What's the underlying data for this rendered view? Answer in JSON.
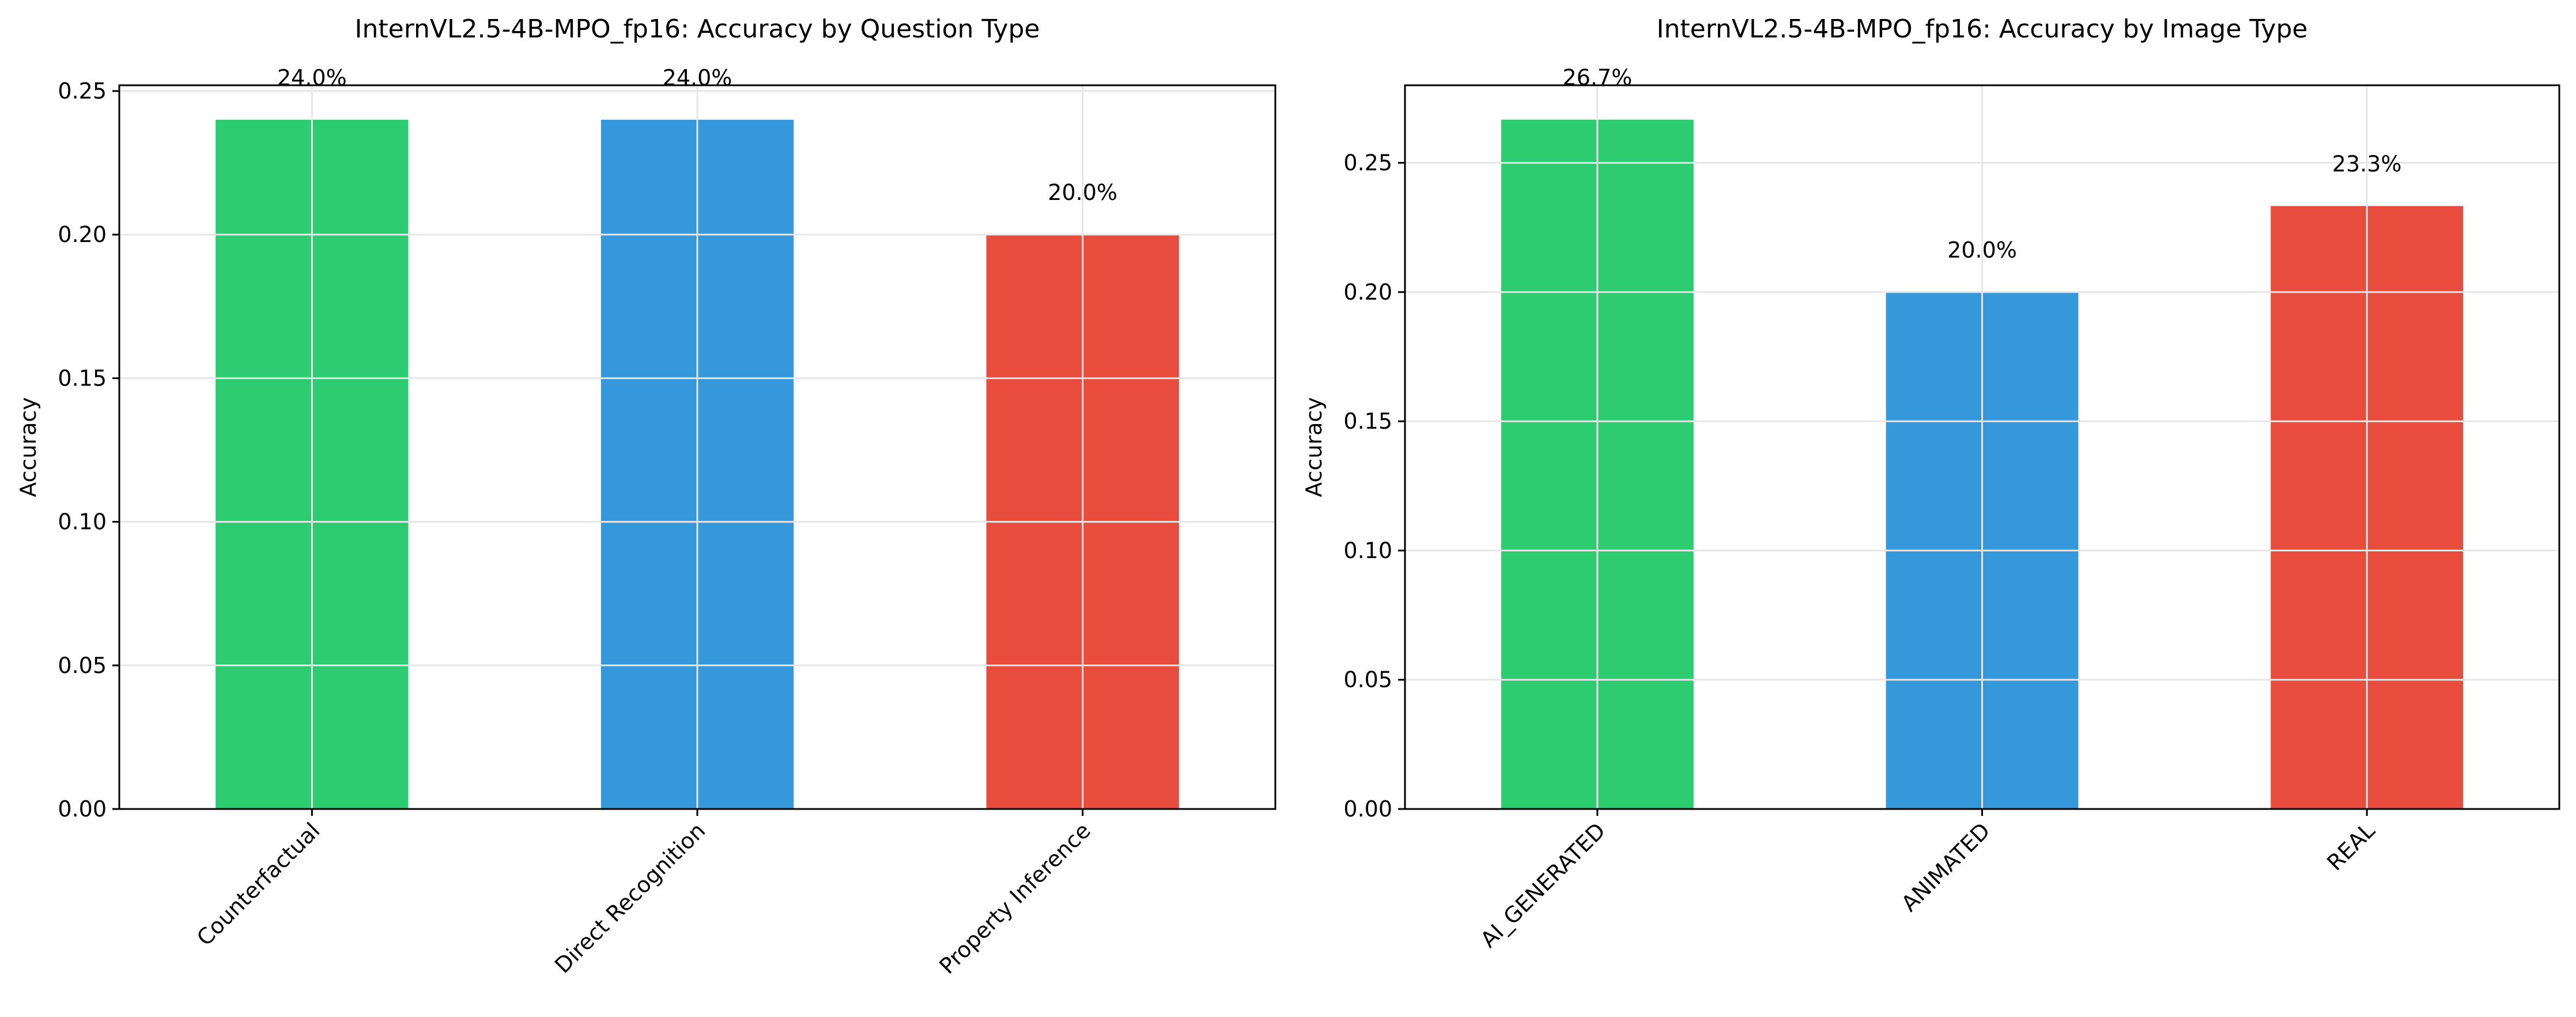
{
  "chart_data": [
    {
      "type": "bar",
      "title": "InternVL2.5-4B-MPO_fp16: Accuracy by Question Type",
      "xlabel": "",
      "ylabel": "Accuracy",
      "categories": [
        "Counterfactual",
        "Direct Recognition",
        "Property Inference"
      ],
      "values": [
        0.24,
        0.24,
        0.2
      ],
      "data_labels": [
        "24.0%",
        "24.0%",
        "20.0%"
      ],
      "colors": [
        "#2ecc71",
        "#3498db",
        "#e74c3c"
      ],
      "ylim": [
        0,
        0.252
      ],
      "yticks": [
        0.0,
        0.05,
        0.1,
        0.15,
        0.2,
        0.25
      ],
      "ytick_labels": [
        "0.00",
        "0.05",
        "0.10",
        "0.15",
        "0.20",
        "0.25"
      ],
      "grid": true,
      "xtick_rotation": 45
    },
    {
      "type": "bar",
      "title": "InternVL2.5-4B-MPO_fp16: Accuracy by Image Type",
      "xlabel": "",
      "ylabel": "Accuracy",
      "categories": [
        "AI_GENERATED",
        "ANIMATED",
        "REAL"
      ],
      "values": [
        0.2667,
        0.2,
        0.2333
      ],
      "data_labels": [
        "26.7%",
        "20.0%",
        "23.3%"
      ],
      "colors": [
        "#2ecc71",
        "#3498db",
        "#e74c3c"
      ],
      "ylim": [
        0,
        0.28
      ],
      "yticks": [
        0.0,
        0.05,
        0.1,
        0.15,
        0.2,
        0.25
      ],
      "ytick_labels": [
        "0.00",
        "0.05",
        "0.10",
        "0.15",
        "0.20",
        "0.25"
      ],
      "grid": true,
      "xtick_rotation": 45
    }
  ]
}
